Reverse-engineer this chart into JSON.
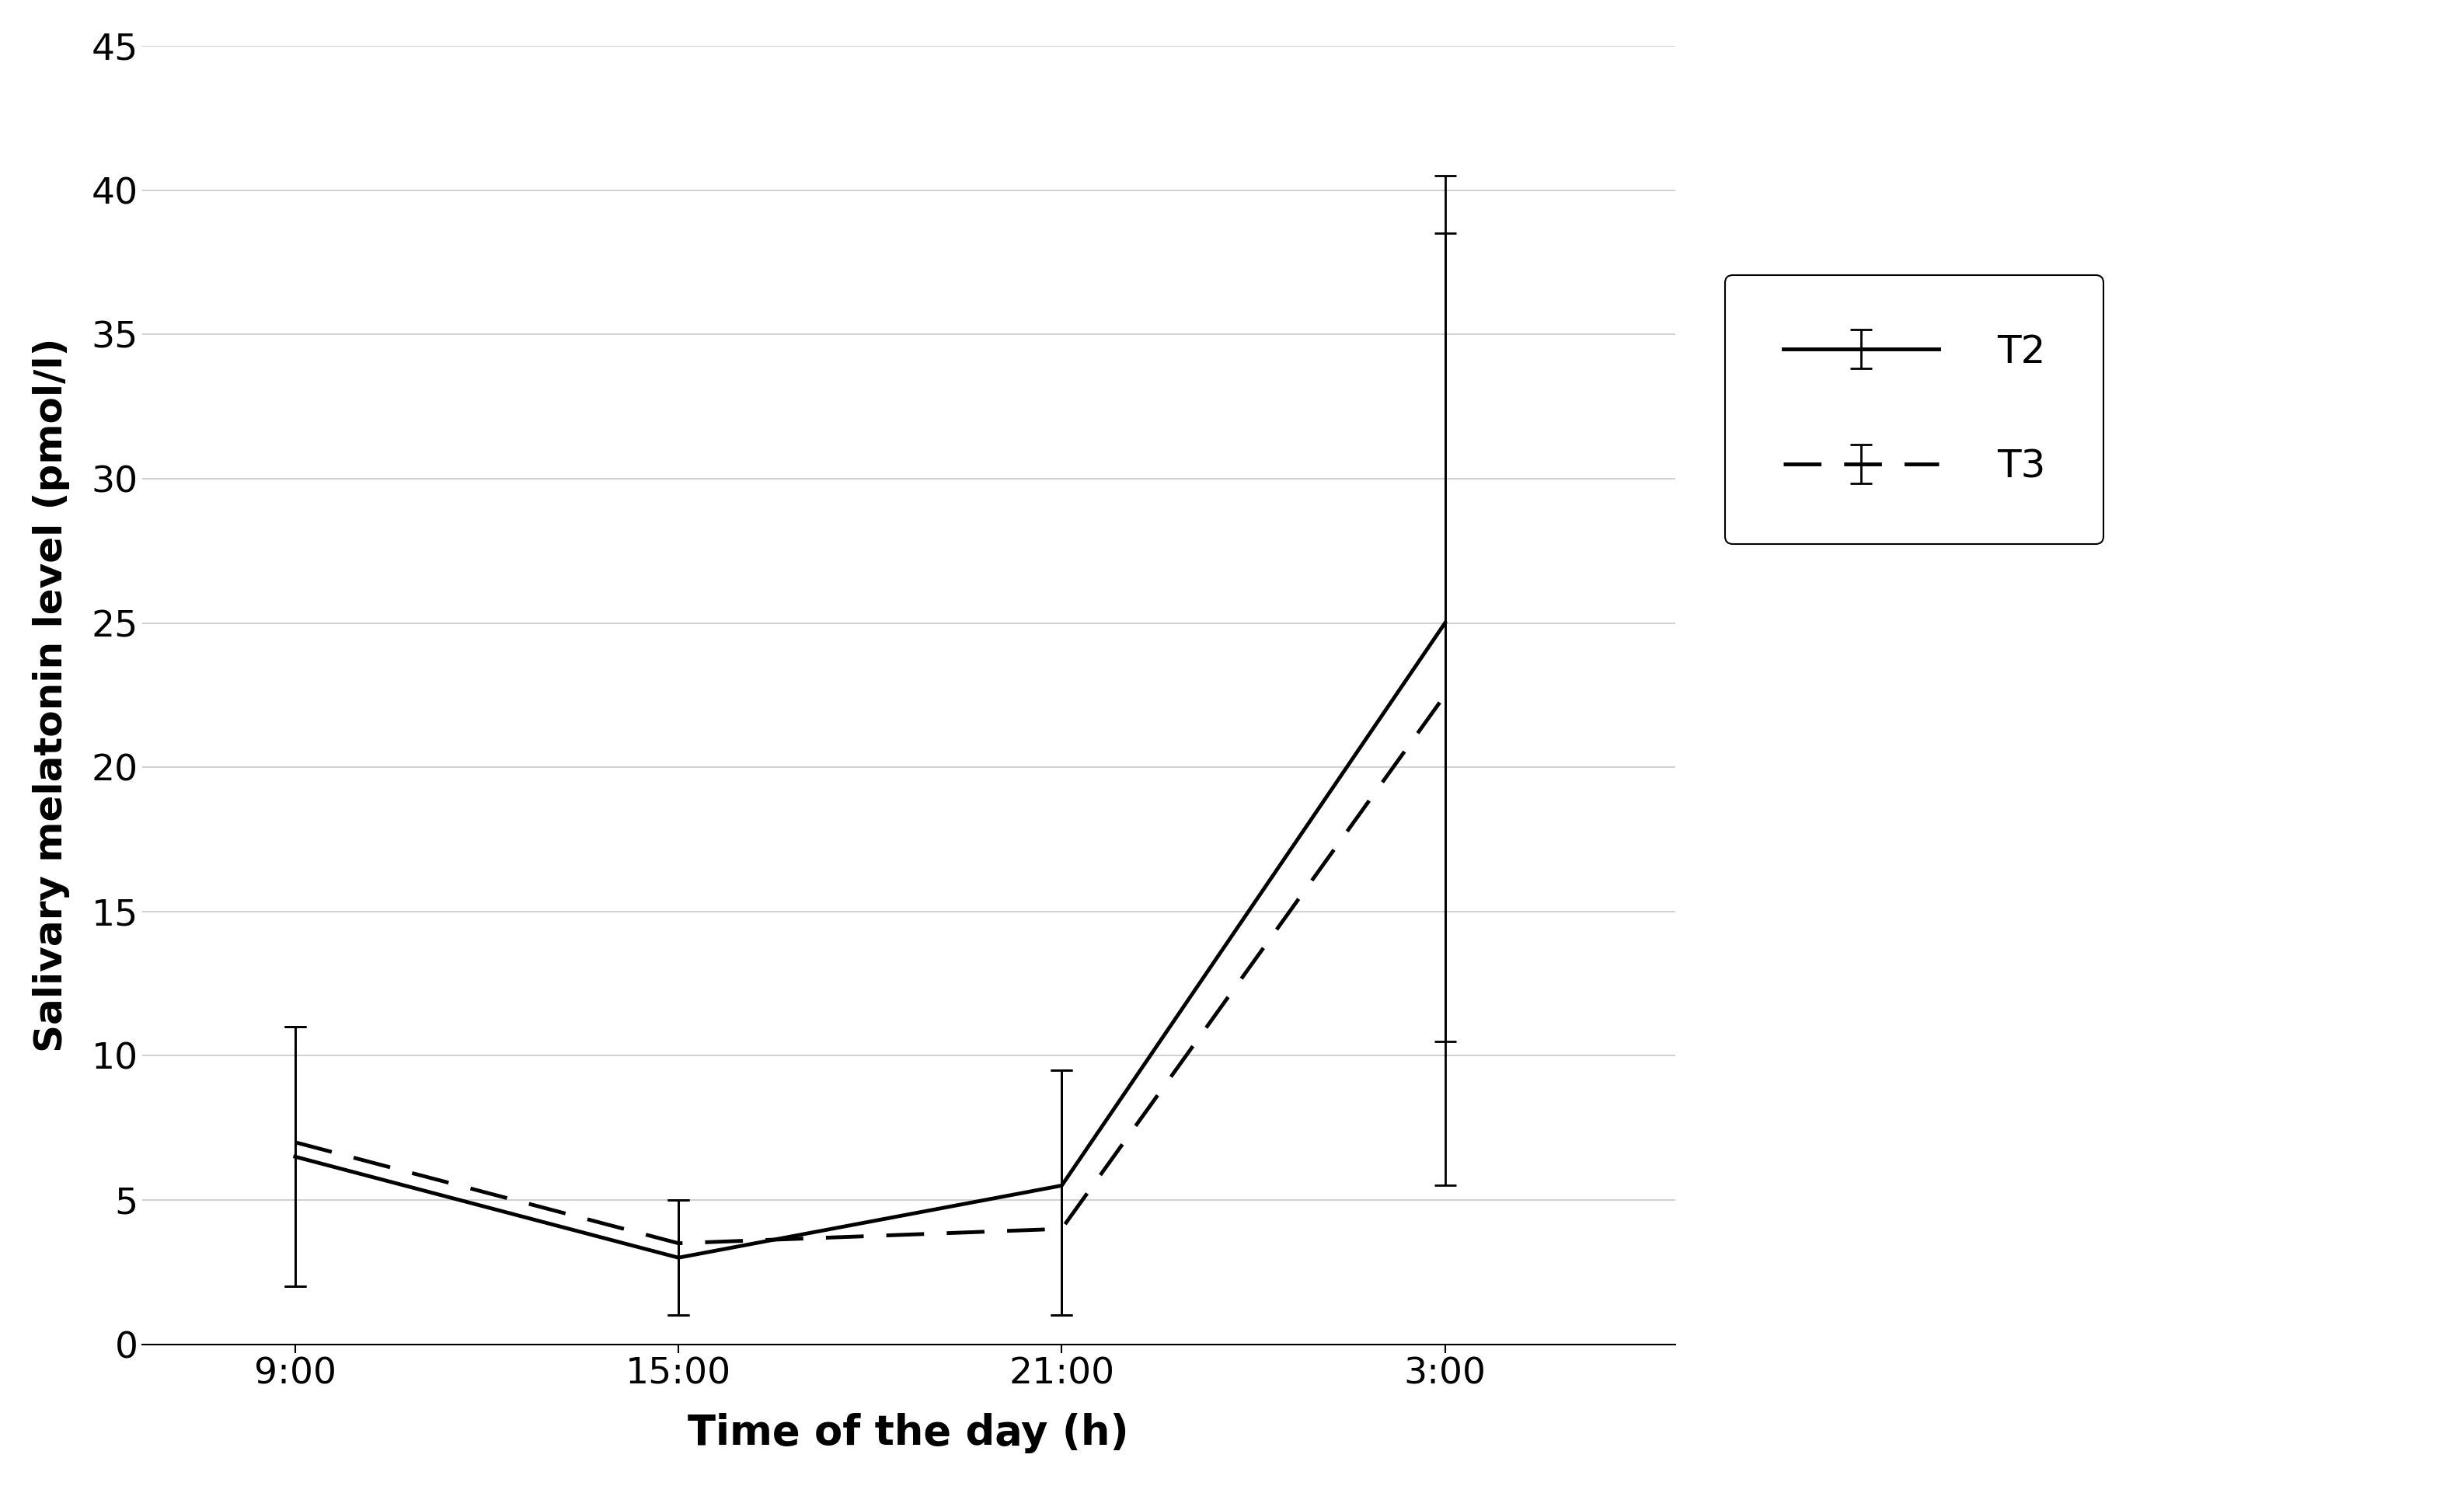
{
  "x_labels": [
    "9:00",
    "15:00",
    "21:00",
    "3:00"
  ],
  "x_positions": [
    0,
    1,
    2,
    3
  ],
  "T2_values": [
    6.5,
    3.0,
    5.5,
    25.0
  ],
  "T3_values": [
    7.0,
    3.5,
    4.0,
    22.5
  ],
  "T2_err_low": [
    4.5,
    2.0,
    4.5,
    19.5
  ],
  "T2_err_high": [
    4.5,
    2.0,
    4.0,
    13.5
  ],
  "T3_err_low": [
    5.0,
    2.5,
    3.0,
    12.0
  ],
  "T3_err_high": [
    4.0,
    1.5,
    5.5,
    18.0
  ],
  "ylabel": "Salivary melatonin level (pmol/l)",
  "xlabel": "Time of the day (h)",
  "ylim": [
    0,
    45
  ],
  "yticks": [
    0,
    5,
    10,
    15,
    20,
    25,
    30,
    35,
    40,
    45
  ],
  "legend_labels": [
    "T2",
    "T3"
  ],
  "background_color": "#ffffff",
  "line_color": "#000000",
  "grid_color": "#c8c8c8"
}
